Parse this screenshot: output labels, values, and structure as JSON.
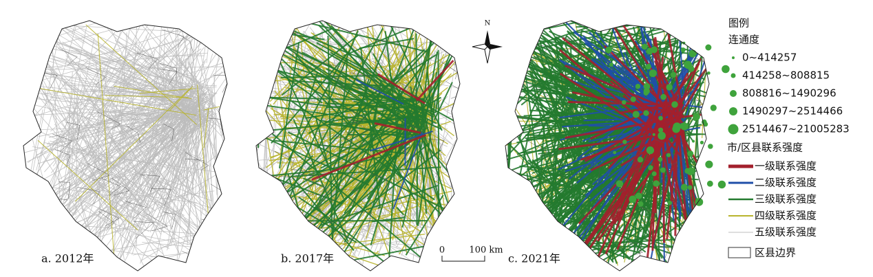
{
  "panels": [
    {
      "label": "a. 2012年"
    },
    {
      "label": "b. 2017年"
    },
    {
      "label": "c. 2021年"
    }
  ],
  "north": "N",
  "scale": {
    "start": "0",
    "end": "100 km"
  },
  "legend": {
    "title": "图例",
    "connectivity_title": "连通度",
    "connectivity_classes": [
      "0~414257",
      "414258~808815",
      "808816~1490296",
      "1490297~2514466",
      "2514467~21005283"
    ],
    "strength_title": "市/区县联系强度",
    "strength_classes": [
      "一级联系强度",
      "二级联系强度",
      "三级联系强度",
      "四级联系强度",
      "五级联系强度"
    ],
    "boundary": "区县边界"
  }
}
